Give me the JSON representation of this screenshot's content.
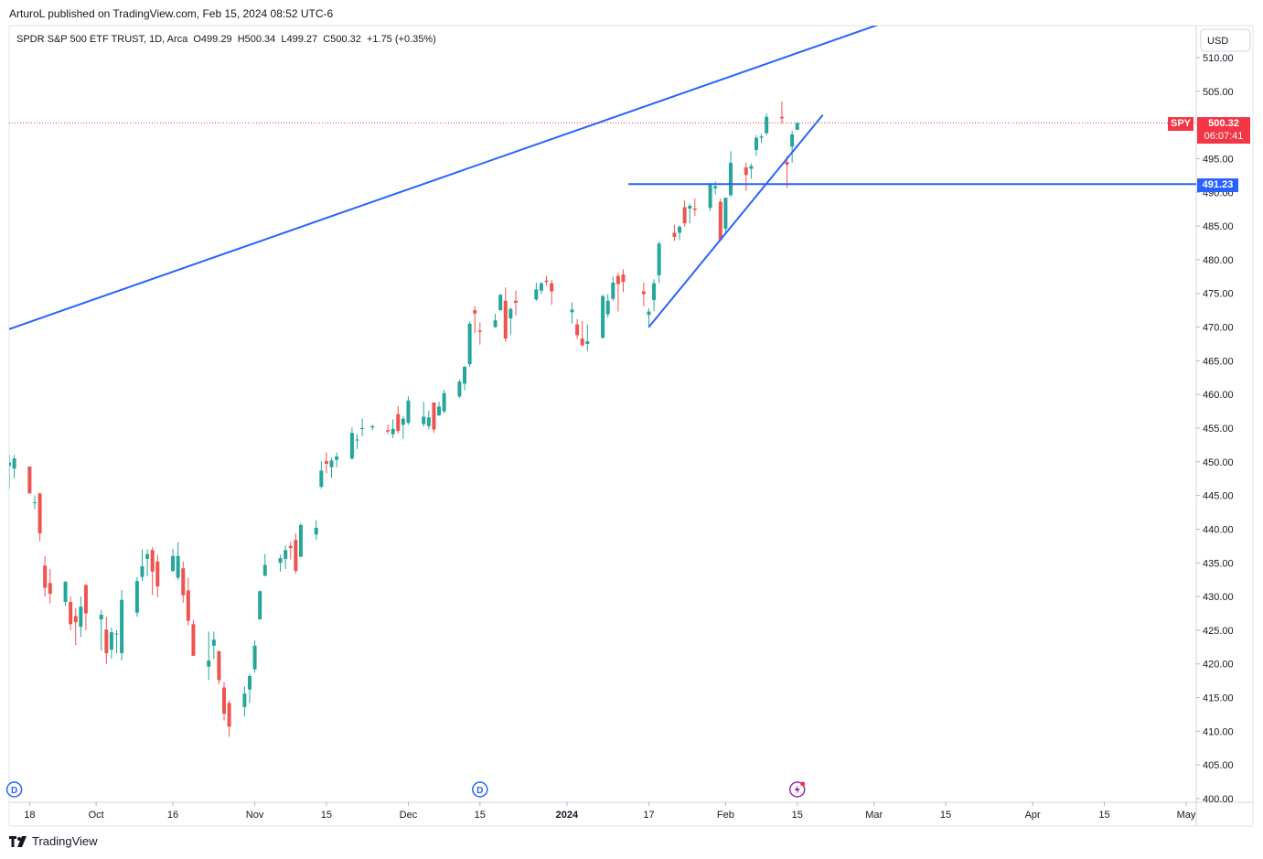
{
  "header": {
    "publish_line": "ArturoL published on TradingView.com, Feb 15, 2024 08:52 UTC-6",
    "symbol_line": "SPDR S&P 500 ETF TRUST, 1D, Arca  O499.29  H500.34  L499.27  C500.32  +1.75 (+0.35%)"
  },
  "currency": "USD",
  "price_labels": {
    "symbol_tag": "SPY",
    "last_price": "500.32",
    "countdown": "06:07:41",
    "hline_price": "491.23"
  },
  "footer": {
    "brand": "TradingView"
  },
  "colors": {
    "up": "#26a69a",
    "down": "#ef5350",
    "line": "#2962ff",
    "last": "#f23645"
  },
  "chart_data": {
    "type": "candlestick",
    "title": "SPDR S&P 500 ETF TRUST, 1D, Arca",
    "ylim": [
      400,
      512
    ],
    "yticks": [
      400,
      405,
      410,
      415,
      420,
      425,
      430,
      435,
      440,
      445,
      450,
      455,
      460,
      465,
      470,
      475,
      480,
      485,
      490,
      495,
      500,
      505,
      510
    ],
    "ytick_labels": [
      "400.00",
      "405.00",
      "410.00",
      "415.00",
      "420.00",
      "425.00",
      "430.00",
      "435.00",
      "440.00",
      "445.00",
      "450.00",
      "455.00",
      "460.00",
      "465.00",
      "470.00",
      "475.00",
      "480.00",
      "485.00",
      "490.00",
      "495.00",
      "500.00",
      "505.00",
      "510.00"
    ],
    "x_start": "2023-09-14",
    "x_end": "2024-05-01",
    "xticks": [
      {
        "date": "2023-09-18",
        "label": "18"
      },
      {
        "date": "2023-10-01",
        "label": "Oct"
      },
      {
        "date": "2023-10-16",
        "label": "16"
      },
      {
        "date": "2023-11-01",
        "label": "Nov"
      },
      {
        "date": "2023-11-15",
        "label": "15"
      },
      {
        "date": "2023-12-01",
        "label": "Dec"
      },
      {
        "date": "2023-12-15",
        "label": "15"
      },
      {
        "date": "2024-01-01",
        "label": "2024",
        "bold": true
      },
      {
        "date": "2024-01-17",
        "label": "17"
      },
      {
        "date": "2024-02-01",
        "label": "Feb"
      },
      {
        "date": "2024-02-15",
        "label": "15"
      },
      {
        "date": "2024-03-01",
        "label": "Mar"
      },
      {
        "date": "2024-03-15",
        "label": "15"
      },
      {
        "date": "2024-04-01",
        "label": "Apr"
      },
      {
        "date": "2024-04-15",
        "label": "15"
      },
      {
        "date": "2024-05-01",
        "label": "May"
      }
    ],
    "candles": [
      {
        "d": "2023-09-14",
        "o": 449.4,
        "h": 451.1,
        "l": 446.0,
        "c": 449.9
      },
      {
        "d": "2023-09-15",
        "o": 449.0,
        "h": 451.0,
        "l": 447.6,
        "c": 450.5
      },
      {
        "d": "2023-09-18",
        "o": 449.3,
        "h": 448.2,
        "l": 445.4,
        "c": 445.3
      },
      {
        "d": "2023-09-19",
        "o": 443.9,
        "h": 445.0,
        "l": 443.0,
        "c": 444.0
      },
      {
        "d": "2023-09-20",
        "o": 445.3,
        "h": 445.4,
        "l": 438.2,
        "c": 439.4
      },
      {
        "d": "2023-09-21",
        "o": 434.6,
        "h": 436.0,
        "l": 430.0,
        "c": 431.3
      },
      {
        "d": "2023-09-22",
        "o": 432.0,
        "h": 434.1,
        "l": 429.0,
        "c": 430.4
      },
      {
        "d": "2023-09-25",
        "o": 429.2,
        "h": 432.3,
        "l": 428.6,
        "c": 432.2
      },
      {
        "d": "2023-09-26",
        "o": 429.2,
        "h": 430.0,
        "l": 425.0,
        "c": 425.9
      },
      {
        "d": "2023-09-27",
        "o": 427.1,
        "h": 428.3,
        "l": 422.8,
        "c": 426.2
      },
      {
        "d": "2023-09-28",
        "o": 425.5,
        "h": 430.0,
        "l": 424.0,
        "c": 428.5
      },
      {
        "d": "2023-09-29",
        "o": 431.7,
        "h": 431.9,
        "l": 425.0,
        "c": 427.5
      },
      {
        "d": "2023-10-02",
        "o": 426.6,
        "h": 428.0,
        "l": 422.0,
        "c": 427.3
      },
      {
        "d": "2023-10-03",
        "o": 425.1,
        "h": 427.0,
        "l": 420.0,
        "c": 421.6
      },
      {
        "d": "2023-10-04",
        "o": 422.1,
        "h": 425.4,
        "l": 420.8,
        "c": 424.7
      },
      {
        "d": "2023-10-05",
        "o": 424.4,
        "h": 425.0,
        "l": 421.6,
        "c": 424.5
      },
      {
        "d": "2023-10-06",
        "o": 421.6,
        "h": 431.0,
        "l": 420.5,
        "c": 429.5
      },
      {
        "d": "2023-10-09",
        "o": 427.6,
        "h": 432.9,
        "l": 427.0,
        "c": 432.3
      },
      {
        "d": "2023-10-10",
        "o": 432.9,
        "h": 437.0,
        "l": 432.3,
        "c": 434.5
      },
      {
        "d": "2023-10-11",
        "o": 435.6,
        "h": 437.0,
        "l": 433.0,
        "c": 436.3
      },
      {
        "d": "2023-10-12",
        "o": 436.9,
        "h": 437.3,
        "l": 430.2,
        "c": 433.7
      },
      {
        "d": "2023-10-13",
        "o": 435.2,
        "h": 436.2,
        "l": 429.9,
        "c": 431.5
      },
      {
        "d": "2023-10-16",
        "o": 433.8,
        "h": 437.1,
        "l": 433.6,
        "c": 436.0
      },
      {
        "d": "2023-10-17",
        "o": 432.8,
        "h": 438.1,
        "l": 432.4,
        "c": 436.0
      },
      {
        "d": "2023-10-18",
        "o": 434.2,
        "h": 435.2,
        "l": 429.1,
        "c": 430.2
      },
      {
        "d": "2023-10-19",
        "o": 430.9,
        "h": 432.8,
        "l": 425.7,
        "c": 426.4
      },
      {
        "d": "2023-10-20",
        "o": 425.9,
        "h": 426.5,
        "l": 421.2,
        "c": 421.2
      },
      {
        "d": "2023-10-23",
        "o": 419.6,
        "h": 424.8,
        "l": 417.6,
        "c": 420.5
      },
      {
        "d": "2023-10-24",
        "o": 422.7,
        "h": 424.8,
        "l": 420.7,
        "c": 423.6
      },
      {
        "d": "2023-10-25",
        "o": 421.9,
        "h": 421.9,
        "l": 417.0,
        "c": 417.6
      },
      {
        "d": "2023-10-26",
        "o": 416.5,
        "h": 417.3,
        "l": 411.6,
        "c": 412.6
      },
      {
        "d": "2023-10-27",
        "o": 414.2,
        "h": 414.6,
        "l": 409.2,
        "c": 410.7
      },
      {
        "d": "2023-10-30",
        "o": 413.6,
        "h": 416.7,
        "l": 412.2,
        "c": 415.6
      },
      {
        "d": "2023-10-31",
        "o": 416.2,
        "h": 418.5,
        "l": 414.2,
        "c": 418.2
      },
      {
        "d": "2023-11-01",
        "o": 419.2,
        "h": 423.5,
        "l": 418.7,
        "c": 422.7
      },
      {
        "d": "2023-11-02",
        "o": 426.6,
        "h": 430.9,
        "l": 426.6,
        "c": 430.8
      },
      {
        "d": "2023-11-03",
        "o": 433.1,
        "h": 436.3,
        "l": 433.0,
        "c": 434.7
      },
      {
        "d": "2023-11-06",
        "o": 435.0,
        "h": 436.2,
        "l": 433.7,
        "c": 435.7
      },
      {
        "d": "2023-11-07",
        "o": 435.6,
        "h": 437.6,
        "l": 434.1,
        "c": 436.9
      },
      {
        "d": "2023-11-08",
        "o": 437.5,
        "h": 438.1,
        "l": 435.5,
        "c": 437.2
      },
      {
        "d": "2023-11-09",
        "o": 438.4,
        "h": 439.4,
        "l": 433.4,
        "c": 433.8
      },
      {
        "d": "2023-11-10",
        "o": 435.9,
        "h": 440.9,
        "l": 435.9,
        "c": 440.6
      },
      {
        "d": "2023-11-13",
        "o": 439.2,
        "h": 441.3,
        "l": 438.4,
        "c": 440.2
      },
      {
        "d": "2023-11-14",
        "o": 446.3,
        "h": 450.1,
        "l": 446.0,
        "c": 448.7
      },
      {
        "d": "2023-11-15",
        "o": 450.1,
        "h": 451.4,
        "l": 448.3,
        "c": 449.7
      },
      {
        "d": "2023-11-16",
        "o": 449.2,
        "h": 450.6,
        "l": 447.6,
        "c": 450.2
      },
      {
        "d": "2023-11-17",
        "o": 450.3,
        "h": 451.4,
        "l": 449.2,
        "c": 450.8
      },
      {
        "d": "2023-11-20",
        "o": 450.5,
        "h": 455.1,
        "l": 450.3,
        "c": 454.3
      },
      {
        "d": "2023-11-21",
        "o": 453.2,
        "h": 454.1,
        "l": 451.9,
        "c": 453.3
      },
      {
        "d": "2023-11-22",
        "o": 454.9,
        "h": 456.4,
        "l": 453.8,
        "c": 455.0
      },
      {
        "d": "2023-11-24",
        "o": 455.1,
        "h": 455.5,
        "l": 454.7,
        "c": 455.3
      },
      {
        "d": "2023-11-27",
        "o": 454.7,
        "h": 455.5,
        "l": 454.1,
        "c": 454.5
      },
      {
        "d": "2023-11-28",
        "o": 454.1,
        "h": 456.3,
        "l": 453.5,
        "c": 454.9
      },
      {
        "d": "2023-11-29",
        "o": 457.1,
        "h": 458.3,
        "l": 454.2,
        "c": 454.6
      },
      {
        "d": "2023-11-30",
        "o": 455.5,
        "h": 456.8,
        "l": 453.4,
        "c": 456.4
      },
      {
        "d": "2023-12-01",
        "o": 455.8,
        "h": 459.7,
        "l": 455.5,
        "c": 459.1
      },
      {
        "d": "2023-12-04",
        "o": 455.6,
        "h": 458.9,
        "l": 455.2,
        "c": 456.7
      },
      {
        "d": "2023-12-05",
        "o": 455.3,
        "h": 457.6,
        "l": 454.8,
        "c": 456.6
      },
      {
        "d": "2023-12-06",
        "o": 458.8,
        "h": 458.8,
        "l": 454.3,
        "c": 454.8
      },
      {
        "d": "2023-12-07",
        "o": 456.9,
        "h": 458.9,
        "l": 456.8,
        "c": 458.2
      },
      {
        "d": "2023-12-08",
        "o": 457.5,
        "h": 460.7,
        "l": 457.2,
        "c": 460.2
      },
      {
        "d": "2023-12-11",
        "o": 459.7,
        "h": 462.2,
        "l": 459.5,
        "c": 461.9
      },
      {
        "d": "2023-12-12",
        "o": 461.6,
        "h": 464.2,
        "l": 460.6,
        "c": 464.1
      },
      {
        "d": "2023-12-13",
        "o": 464.5,
        "h": 470.8,
        "l": 464.1,
        "c": 470.5
      },
      {
        "d": "2023-12-14",
        "o": 472.5,
        "h": 473.1,
        "l": 469.1,
        "c": 472.0
      },
      {
        "d": "2023-12-15",
        "o": 469.5,
        "h": 470.7,
        "l": 467.4,
        "c": 469.3
      },
      {
        "d": "2023-12-18",
        "o": 470.0,
        "h": 472.0,
        "l": 469.9,
        "c": 471.0
      },
      {
        "d": "2023-12-19",
        "o": 472.5,
        "h": 474.9,
        "l": 472.5,
        "c": 474.8
      },
      {
        "d": "2023-12-20",
        "o": 473.9,
        "h": 475.9,
        "l": 467.8,
        "c": 468.3
      },
      {
        "d": "2023-12-21",
        "o": 471.3,
        "h": 472.9,
        "l": 468.9,
        "c": 472.7
      },
      {
        "d": "2023-12-22",
        "o": 473.9,
        "h": 475.4,
        "l": 471.7,
        "c": 473.6
      },
      {
        "d": "2023-12-26",
        "o": 474.1,
        "h": 476.6,
        "l": 473.9,
        "c": 475.6
      },
      {
        "d": "2023-12-27",
        "o": 475.4,
        "h": 476.7,
        "l": 474.9,
        "c": 476.5
      },
      {
        "d": "2023-12-28",
        "o": 476.9,
        "h": 477.6,
        "l": 476.1,
        "c": 476.7
      },
      {
        "d": "2023-12-29",
        "o": 476.5,
        "h": 477.0,
        "l": 473.3,
        "c": 475.3
      },
      {
        "d": "2024-01-02",
        "o": 472.2,
        "h": 473.7,
        "l": 470.5,
        "c": 472.6
      },
      {
        "d": "2024-01-03",
        "o": 470.4,
        "h": 471.2,
        "l": 468.2,
        "c": 468.8
      },
      {
        "d": "2024-01-04",
        "o": 468.3,
        "h": 470.9,
        "l": 467.1,
        "c": 467.3
      },
      {
        "d": "2024-01-05",
        "o": 467.5,
        "h": 470.4,
        "l": 466.4,
        "c": 467.9
      },
      {
        "d": "2024-01-08",
        "o": 468.4,
        "h": 474.8,
        "l": 468.3,
        "c": 474.6
      },
      {
        "d": "2024-01-09",
        "o": 471.9,
        "h": 474.9,
        "l": 471.4,
        "c": 473.9
      },
      {
        "d": "2024-01-10",
        "o": 474.2,
        "h": 477.5,
        "l": 473.9,
        "c": 476.6
      },
      {
        "d": "2024-01-11",
        "o": 477.6,
        "h": 478.1,
        "l": 472.3,
        "c": 476.4
      },
      {
        "d": "2024-01-12",
        "o": 477.8,
        "h": 478.6,
        "l": 475.2,
        "c": 476.7
      },
      {
        "d": "2024-01-16",
        "o": 475.3,
        "h": 476.6,
        "l": 473.1,
        "c": 474.9
      },
      {
        "d": "2024-01-17",
        "o": 471.8,
        "h": 472.8,
        "l": 469.9,
        "c": 472.3
      },
      {
        "d": "2024-01-18",
        "o": 474.0,
        "h": 477.1,
        "l": 472.4,
        "c": 476.5
      },
      {
        "d": "2024-01-19",
        "o": 477.7,
        "h": 482.7,
        "l": 476.5,
        "c": 482.4
      },
      {
        "d": "2024-01-22",
        "o": 484.0,
        "h": 485.2,
        "l": 482.8,
        "c": 483.4
      },
      {
        "d": "2024-01-23",
        "o": 484.0,
        "h": 485.1,
        "l": 482.9,
        "c": 484.9
      },
      {
        "d": "2024-01-24",
        "o": 487.8,
        "h": 488.8,
        "l": 484.9,
        "c": 485.4
      },
      {
        "d": "2024-01-25",
        "o": 487.6,
        "h": 488.3,
        "l": 485.4,
        "c": 488.0
      },
      {
        "d": "2024-01-26",
        "o": 487.6,
        "h": 489.1,
        "l": 486.5,
        "c": 487.4
      },
      {
        "d": "2024-01-29",
        "o": 487.7,
        "h": 491.4,
        "l": 487.2,
        "c": 491.3
      },
      {
        "d": "2024-01-30",
        "o": 490.6,
        "h": 491.6,
        "l": 489.7,
        "c": 490.9
      },
      {
        "d": "2024-01-31",
        "o": 488.6,
        "h": 489.1,
        "l": 482.9,
        "c": 482.9
      },
      {
        "d": "2024-02-01",
        "o": 484.6,
        "h": 489.2,
        "l": 483.8,
        "c": 489.2
      },
      {
        "d": "2024-02-02",
        "o": 489.6,
        "h": 496.1,
        "l": 489.3,
        "c": 494.4
      },
      {
        "d": "2024-02-05",
        "o": 493.7,
        "h": 494.4,
        "l": 490.2,
        "c": 492.6
      },
      {
        "d": "2024-02-06",
        "o": 493.5,
        "h": 494.3,
        "l": 492.0,
        "c": 493.9
      },
      {
        "d": "2024-02-07",
        "o": 496.3,
        "h": 498.5,
        "l": 495.4,
        "c": 498.1
      },
      {
        "d": "2024-02-08",
        "o": 498.1,
        "h": 498.7,
        "l": 497.3,
        "c": 498.3
      },
      {
        "d": "2024-02-09",
        "o": 498.8,
        "h": 501.7,
        "l": 498.5,
        "c": 501.2
      },
      {
        "d": "2024-02-12",
        "o": 501.2,
        "h": 503.5,
        "l": 500.2,
        "c": 500.98
      },
      {
        "d": "2024-02-13",
        "o": 494.5,
        "h": 495.4,
        "l": 490.7,
        "c": 494.1
      },
      {
        "d": "2024-02-14",
        "o": 496.8,
        "h": 499.1,
        "l": 494.4,
        "c": 498.6
      },
      {
        "d": "2024-02-15",
        "o": 499.29,
        "h": 500.34,
        "l": 499.27,
        "c": 500.32
      }
    ],
    "hlines": [
      {
        "value": 491.23,
        "from": "2024-01-13",
        "label": "491.23"
      }
    ],
    "trendlines": [
      {
        "name": "upper-channel",
        "points": [
          {
            "d": "2023-09-14",
            "v": 469.7
          },
          {
            "d": "2024-03-06",
            "v": 516.0
          }
        ]
      },
      {
        "name": "rising-support",
        "points": [
          {
            "d": "2024-01-17",
            "v": 470.0
          },
          {
            "d": "2024-02-20",
            "v": 501.5
          }
        ]
      }
    ],
    "last_price": 500.32,
    "event_markers": [
      {
        "date": "2023-09-15",
        "label": "D",
        "kind": "dividend"
      },
      {
        "date": "2023-12-15",
        "label": "D",
        "kind": "dividend"
      },
      {
        "date": "2024-02-15",
        "label": "",
        "kind": "flash"
      }
    ]
  }
}
